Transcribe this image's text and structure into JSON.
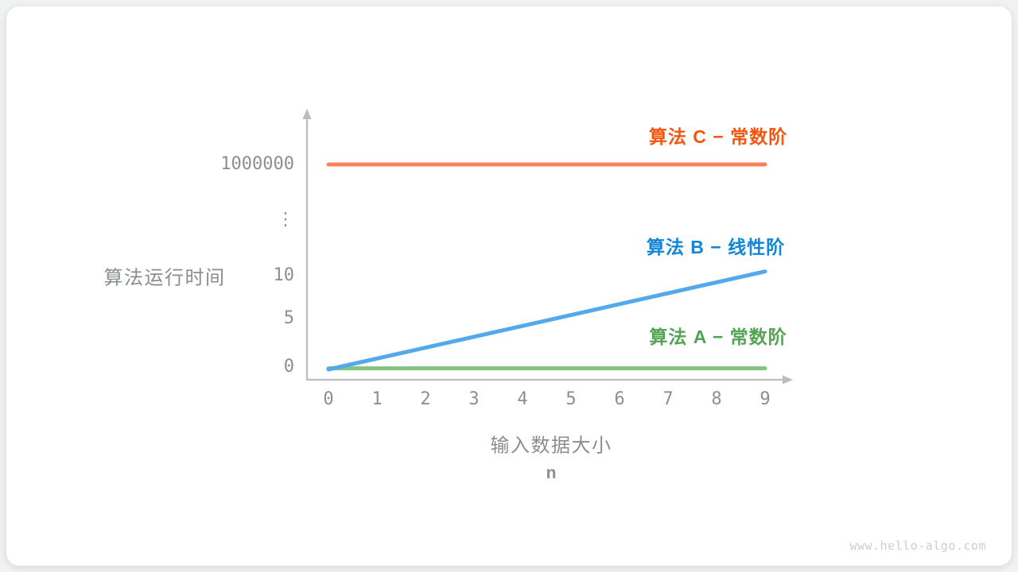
{
  "page": {
    "watermark": "www.hello-algo.com",
    "background": "#f1f2f3",
    "card_background": "#ffffff"
  },
  "chart_data": {
    "type": "line",
    "title": "",
    "ylabel": "算法运行时间",
    "xlabel": "输入数据大小",
    "xlabel_sub": "n",
    "x": [
      0,
      1,
      2,
      3,
      4,
      5,
      6,
      7,
      8,
      9
    ],
    "xtick_labels": [
      "0",
      "1",
      "2",
      "3",
      "4",
      "5",
      "6",
      "7",
      "8",
      "9"
    ],
    "ytick_labels": [
      "0",
      "5",
      "10",
      "⋮",
      "1000000"
    ],
    "y_axis_broken": true,
    "xlim": [
      0,
      9
    ],
    "grid": false,
    "axis_color": "#bcbdbf",
    "tick_color": "#8c8f91",
    "axis_title_color": "#8a8e91",
    "series": [
      {
        "name": "算法 A",
        "label": "算法 A − 常数阶",
        "complexity": "constant",
        "points": [
          [
            0,
            0.1
          ],
          [
            9,
            0.1
          ]
        ],
        "line_color": "#83c483",
        "label_color": "#52a352"
      },
      {
        "name": "算法 B",
        "label": "算法 B − 线性阶",
        "complexity": "linear",
        "points": [
          [
            0,
            0
          ],
          [
            9,
            9
          ]
        ],
        "line_color": "#54a9ec",
        "label_color": "#0f86d8"
      },
      {
        "name": "算法 C",
        "label": "算法 C − 常数阶",
        "complexity": "constant",
        "points": [
          [
            0,
            1000000
          ],
          [
            9,
            1000000
          ]
        ],
        "line_color": "#f9825e",
        "label_color": "#f4560f"
      }
    ]
  }
}
